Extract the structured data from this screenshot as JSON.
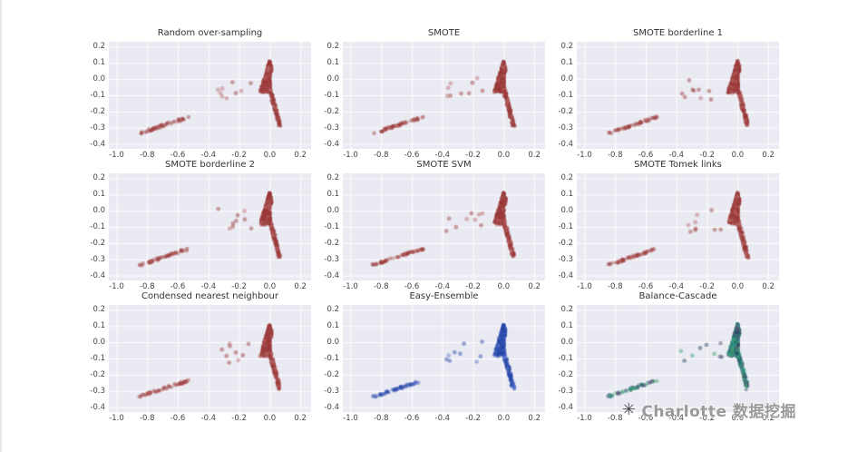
{
  "watermark": {
    "text": "Charlotte 数据挖掘",
    "icon": "sparkle-logo",
    "glyph": "✳"
  },
  "chart_data": {
    "type": "scatter",
    "grid": true,
    "plot_bg": "#eaeaf2",
    "grid_color": "#ffffff",
    "xlim": [
      -1.05,
      0.27
    ],
    "ylim": [
      -0.43,
      0.23
    ],
    "x_ticks": [
      -1.0,
      -0.8,
      -0.6,
      -0.4,
      -0.2,
      0.0,
      0.2
    ],
    "x_tick_labels": [
      "-1.0",
      "-0.8",
      "-0.6",
      "-0.4",
      "-0.2",
      "0.0",
      "0.2"
    ],
    "y_ticks": [
      0.2,
      0.1,
      0.0,
      -0.1,
      -0.2,
      -0.3,
      -0.4
    ],
    "y_tick_labels": [
      "0.2",
      "0.1",
      "0.0",
      "-0.1",
      "-0.2",
      "-0.3",
      "-0.4"
    ],
    "point_alpha": 0.45,
    "palettes": {
      "red": [
        "#9c3a3a",
        "#b96a6a"
      ],
      "blue": [
        "#2746a8",
        "#5a78cf"
      ],
      "mixed": [
        "#2a9d8f",
        "#22455f",
        "#43a36b",
        "#5a4f7c"
      ]
    },
    "subplots": [
      {
        "title": "Random over-sampling",
        "palette": "red"
      },
      {
        "title": "SMOTE",
        "palette": "red"
      },
      {
        "title": "SMOTE borderline 1",
        "palette": "red"
      },
      {
        "title": "SMOTE borderline 2",
        "palette": "red"
      },
      {
        "title": "SMOTE SVM",
        "palette": "red"
      },
      {
        "title": "SMOTE Tomek links",
        "palette": "red"
      },
      {
        "title": "Condensed nearest neighbour",
        "palette": "red"
      },
      {
        "title": "Easy-Ensemble",
        "palette": "blue"
      },
      {
        "title": "Balance-Cascade",
        "palette": "mixed"
      }
    ],
    "clusters": [
      {
        "kind": "blob",
        "n": 260,
        "c": [
          0.0,
          0.06
        ],
        "s": [
          0.016,
          0.03
        ],
        "r": 2.2
      },
      {
        "kind": "wedge",
        "n": 520,
        "apex": [
          0.0,
          0.105
        ],
        "tip": [
          -0.03,
          -0.08
        ],
        "spread": 0.07,
        "yjit": 0.02,
        "r": 2.1
      },
      {
        "kind": "tailline",
        "n": 140,
        "from": [
          -0.005,
          -0.04
        ],
        "to": [
          0.065,
          -0.285
        ],
        "jit": 0.018,
        "r": 2.0
      },
      {
        "kind": "box",
        "n": 9,
        "xr": [
          -0.38,
          -0.1
        ],
        "yr": [
          -0.13,
          0.01
        ],
        "r": 2.4
      },
      {
        "kind": "lineseg",
        "n": 48,
        "from": [
          -0.85,
          -0.335
        ],
        "to": [
          -0.53,
          -0.235
        ],
        "jit": 0.013,
        "r": 2.2
      }
    ]
  }
}
